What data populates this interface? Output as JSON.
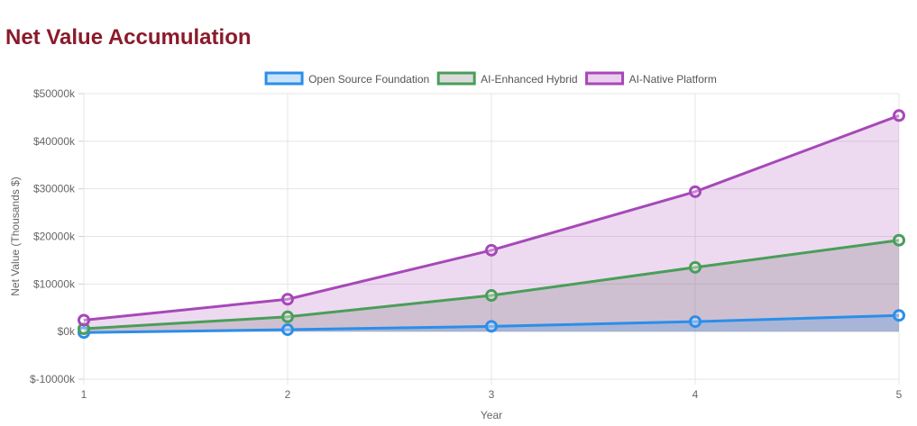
{
  "page": {
    "title": "Net Value Accumulation"
  },
  "chart_data": {
    "type": "area",
    "x": [
      1,
      2,
      3,
      4,
      5
    ],
    "xlabel": "Year",
    "ylabel": "Net Value (Thousands $)",
    "ylim": [
      -10000,
      50000
    ],
    "y_ticks": [
      -10000,
      0,
      10000,
      20000,
      30000,
      40000,
      50000
    ],
    "y_tick_labels": [
      "$-10000k",
      "$0k",
      "$10000k",
      "$20000k",
      "$30000k",
      "$40000k",
      "$50000k"
    ],
    "x_tick_labels": [
      "1",
      "2",
      "3",
      "4",
      "5"
    ],
    "grid": true,
    "legend_position": "top",
    "series": [
      {
        "name": "Open Source Foundation",
        "values": [
          -200,
          400,
          1100,
          2100,
          3400
        ],
        "color": "#2b8eea",
        "fill": "rgba(43,142,234,0.22)"
      },
      {
        "name": "AI-Enhanced Hybrid",
        "values": [
          600,
          3100,
          7600,
          13500,
          19200
        ],
        "color": "#4a9e58",
        "fill": "rgba(110,110,110,0.24)"
      },
      {
        "name": "AI-Native Platform",
        "values": [
          2400,
          6800,
          17100,
          29400,
          45400
        ],
        "color": "#a748b8",
        "fill": "rgba(167,72,184,0.2)"
      }
    ]
  }
}
